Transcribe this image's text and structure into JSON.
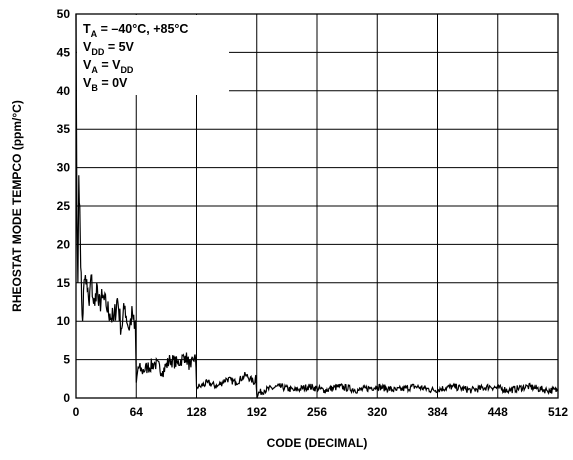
{
  "chart_data": {
    "type": "line",
    "title": "",
    "xlabel": "CODE (DECIMAL)",
    "ylabel": "RHEOSTAT MODE TEMPCO (ppm/°C)",
    "xlim": [
      0,
      512
    ],
    "ylim": [
      0,
      50
    ],
    "x_ticks": [
      0,
      64,
      128,
      192,
      256,
      320,
      384,
      448,
      512
    ],
    "y_ticks": [
      0,
      5,
      10,
      15,
      20,
      25,
      30,
      35,
      40,
      45,
      50
    ],
    "grid": true,
    "legend": "none",
    "line_color": "#000000",
    "annotation": {
      "lines": [
        {
          "main": "T",
          "sub": "A",
          "rest": " = –40°C, +85°C"
        },
        {
          "main": "V",
          "sub": "DD",
          "rest": " = 5V"
        },
        {
          "main": "V",
          "sub": "A",
          "rest": " = V",
          "sub2": "DD"
        },
        {
          "main": "V",
          "sub": "B",
          "rest": " = 0V"
        }
      ]
    },
    "series": [
      {
        "x": [
          0,
          1,
          2,
          3,
          4,
          5,
          6,
          7,
          8,
          10,
          12,
          14,
          16,
          18,
          20,
          22,
          24,
          28,
          32,
          36,
          40,
          44,
          48,
          52,
          56,
          60,
          62,
          63,
          64,
          66,
          70,
          76,
          84,
          92,
          100,
          108,
          116,
          122,
          126,
          127,
          128,
          132,
          140,
          150,
          160,
          170,
          180,
          190,
          191,
          192,
          200,
          216,
          232,
          248,
          264,
          280,
          300,
          320,
          340,
          360,
          380,
          400,
          420,
          440,
          460,
          480,
          500,
          512
        ],
        "y": [
          50,
          24,
          15,
          29,
          25,
          17,
          13,
          10,
          14,
          16,
          14,
          12,
          16,
          13,
          12,
          15,
          12,
          13,
          12,
          11,
          10,
          13,
          9,
          12,
          9,
          11,
          9,
          10,
          2,
          4,
          3.5,
          4,
          4.5,
          3.5,
          5,
          4.5,
          5.5,
          4,
          5.5,
          5,
          1.5,
          1.5,
          2,
          1.5,
          2.5,
          2,
          3,
          2,
          3,
          0.5,
          1,
          1.5,
          1,
          1.5,
          1,
          1.5,
          1,
          1.5,
          1,
          1.5,
          1,
          1.5,
          1,
          1.5,
          1,
          1.5,
          1,
          1
        ]
      }
    ]
  }
}
